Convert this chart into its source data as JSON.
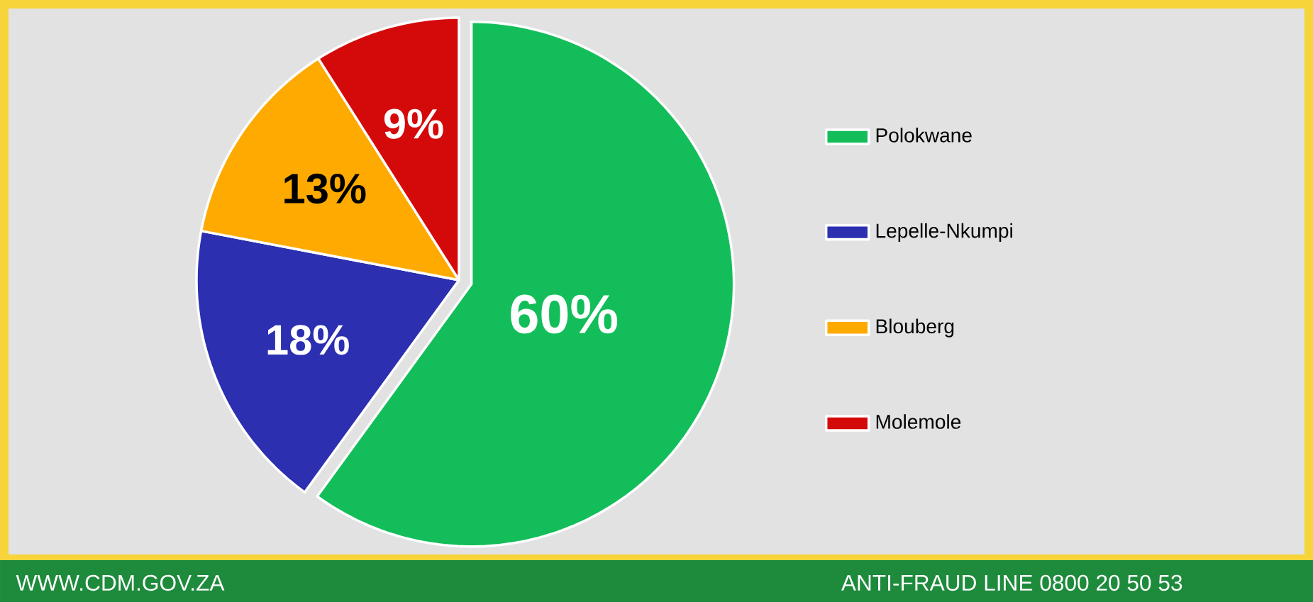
{
  "chart_data": {
    "type": "pie",
    "categories": [
      "Polokwane",
      "Lepelle-Nkumpi",
      "Blouberg",
      "Molemole"
    ],
    "values": [
      60,
      18,
      13,
      9
    ],
    "colors": [
      "#13be5a",
      "#2b2fb0",
      "#ffaa00",
      "#d40a0a"
    ],
    "value_labels": [
      "60%",
      "18%",
      "13%",
      "9%"
    ],
    "legend": "right",
    "annotations": [
      "WWW.CDM.GOV.ZA",
      "ANTI-FRAUD LINE 0800 20 50 53"
    ]
  }
}
